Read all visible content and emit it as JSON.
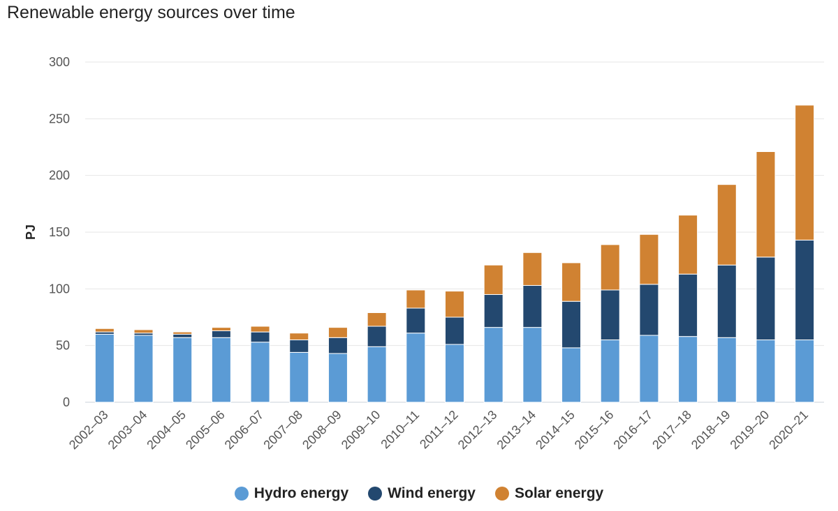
{
  "chart_data": {
    "type": "bar",
    "stacked": true,
    "title": "Renewable energy sources over time",
    "xlabel": "",
    "ylabel": "PJ",
    "ylim": [
      0,
      300
    ],
    "yticks": [
      0,
      50,
      100,
      150,
      200,
      250,
      300
    ],
    "grid": true,
    "legend_position": "bottom-center",
    "categories": [
      "2002–03",
      "2003–04",
      "2004–05",
      "2005–06",
      "2006–07",
      "2007–08",
      "2008–09",
      "2009–10",
      "2010–11",
      "2011–12",
      "2012–13",
      "2013–14",
      "2014–15",
      "2015–16",
      "2016–17",
      "2017–18",
      "2018–19",
      "2019–20",
      "2020–21"
    ],
    "series": [
      {
        "name": "Hydro energy",
        "color": "#5b9bd5",
        "values": [
          60,
          59,
          57,
          57,
          53,
          44,
          43,
          49,
          61,
          51,
          66,
          66,
          48,
          55,
          59,
          58,
          57,
          55,
          55
        ]
      },
      {
        "name": "Wind energy",
        "color": "#23486f",
        "values": [
          2,
          2,
          3,
          6,
          9,
          11,
          14,
          18,
          22,
          24,
          29,
          37,
          41,
          44,
          45,
          55,
          64,
          73,
          88
        ]
      },
      {
        "name": "Solar energy",
        "color": "#d08232",
        "values": [
          3,
          3,
          2,
          3,
          5,
          6,
          9,
          12,
          16,
          23,
          26,
          29,
          34,
          40,
          44,
          52,
          71,
          93,
          119
        ]
      }
    ]
  }
}
